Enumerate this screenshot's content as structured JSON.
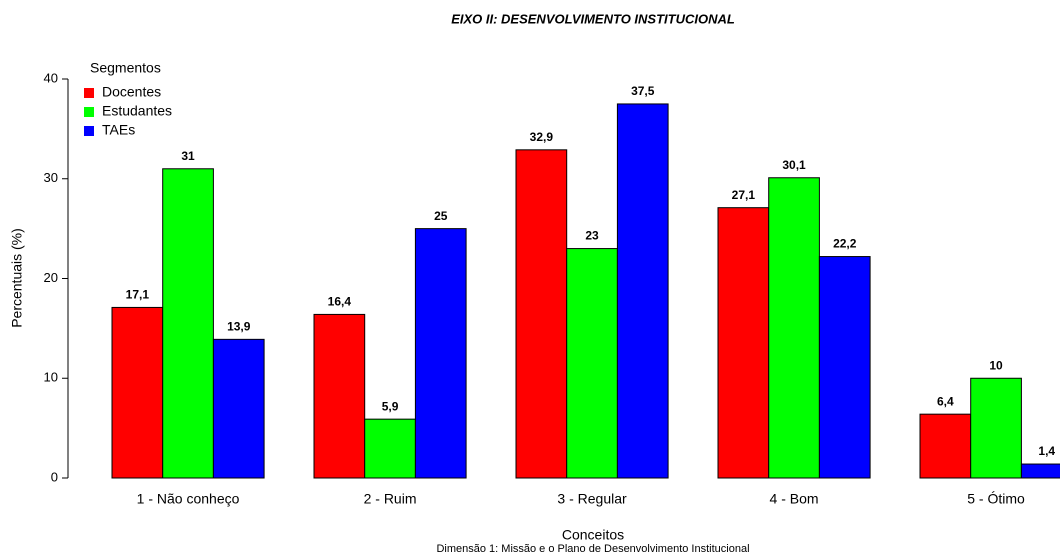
{
  "chart_data": {
    "type": "bar",
    "title": "EIXO II: DESENVOLVIMENTO INSTITUCIONAL",
    "xlabel": "Conceitos",
    "subtitle": "Dimensão 1: Missão e o Plano de Desenvolvimento Institucional",
    "ylabel": "Percentuais (%)",
    "legend_title": "Segmentos",
    "legend_position": "top-left",
    "categories": [
      "1 - Não conheço",
      "2 - Ruim",
      "3 - Regular",
      "4 - Bom",
      "5 - Ótimo"
    ],
    "series": [
      {
        "name": "Docentes",
        "color": "#ff0000",
        "values": [
          17.1,
          16.4,
          32.9,
          27.1,
          6.4
        ],
        "value_labels": [
          "17,1",
          "16,4",
          "32,9",
          "27,1",
          "6,4"
        ]
      },
      {
        "name": "Estudantes",
        "color": "#00ff00",
        "values": [
          31,
          5.9,
          23,
          30.1,
          10
        ],
        "value_labels": [
          "31",
          "5,9",
          "23",
          "30,1",
          "10"
        ]
      },
      {
        "name": "TAEs",
        "color": "#0000ff",
        "values": [
          13.9,
          25,
          37.5,
          22.2,
          1.4
        ],
        "value_labels": [
          "13,9",
          "25",
          "37,5",
          "22,2",
          "1,4"
        ]
      }
    ],
    "ylim": [
      0,
      40
    ],
    "yticks": [
      0,
      10,
      20,
      30,
      40
    ],
    "grid": false
  }
}
